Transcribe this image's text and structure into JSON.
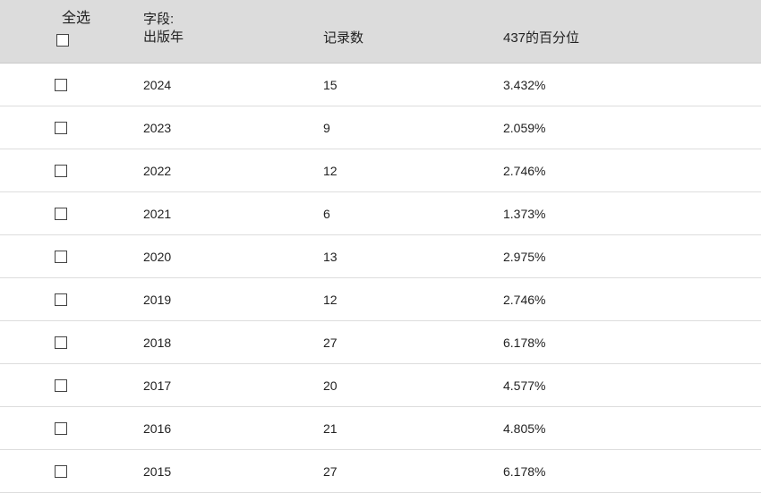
{
  "header": {
    "select_all_label": "全选",
    "field_label_line1": "字段:",
    "field_label_line2": "出版年",
    "count_label": "记录数",
    "percent_label": "437的百分位"
  },
  "rows": [
    {
      "year": "2024",
      "count": "15",
      "percent": "3.432%"
    },
    {
      "year": "2023",
      "count": "9",
      "percent": "2.059%"
    },
    {
      "year": "2022",
      "count": "12",
      "percent": "2.746%"
    },
    {
      "year": "2021",
      "count": "6",
      "percent": "1.373%"
    },
    {
      "year": "2020",
      "count": "13",
      "percent": "2.975%"
    },
    {
      "year": "2019",
      "count": "12",
      "percent": "2.746%"
    },
    {
      "year": "2018",
      "count": "27",
      "percent": "6.178%"
    },
    {
      "year": "2017",
      "count": "20",
      "percent": "4.577%"
    },
    {
      "year": "2016",
      "count": "21",
      "percent": "4.805%"
    },
    {
      "year": "2015",
      "count": "27",
      "percent": "6.178%"
    }
  ]
}
